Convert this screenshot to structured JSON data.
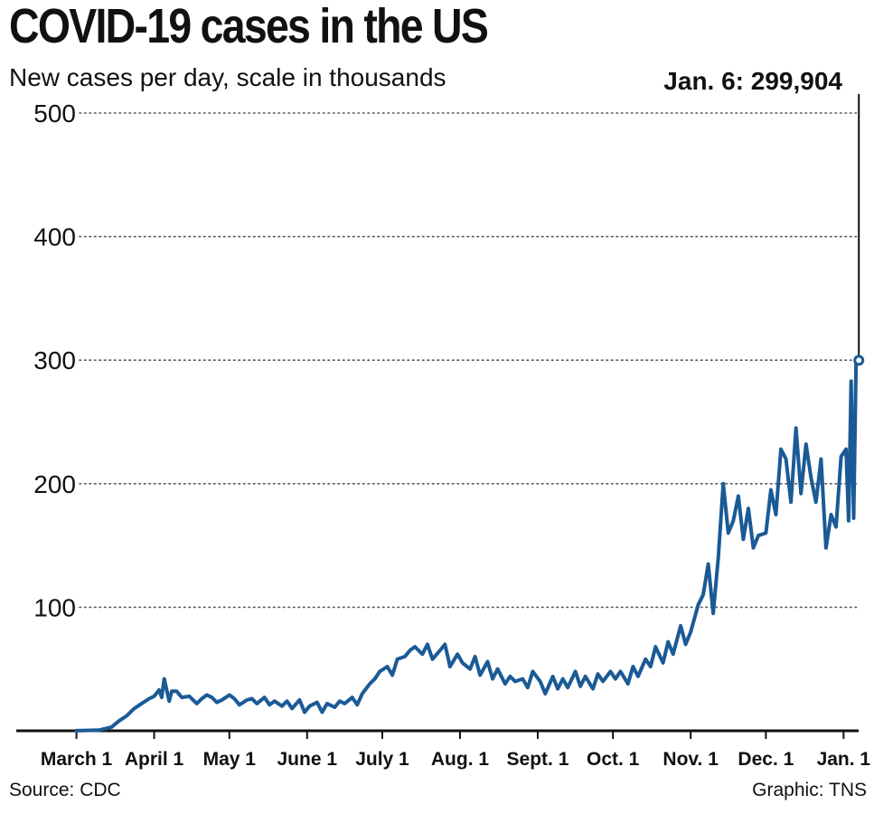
{
  "header": {
    "title": "COVID-19 cases in the US",
    "subtitle": "New cases per day, scale in thousands"
  },
  "footer": {
    "source": "Source: CDC",
    "credit": "Graphic: TNS"
  },
  "chart_data": {
    "type": "line",
    "title": "COVID-19 cases in the US",
    "subtitle": "New cases per day, scale in thousands",
    "ylabel": "",
    "xlabel": "",
    "ylim": [
      0,
      500
    ],
    "yticks": [
      100,
      200,
      300,
      400,
      500
    ],
    "xlim": [
      "2020-02-06",
      "2021-01-07"
    ],
    "xtick_labels": [
      {
        "label": "March 1",
        "date": "2020-03-01"
      },
      {
        "label": "April 1",
        "date": "2020-04-01"
      },
      {
        "label": "May 1",
        "date": "2020-05-01"
      },
      {
        "label": "June 1",
        "date": "2020-06-01"
      },
      {
        "label": "July 1",
        "date": "2020-07-01"
      },
      {
        "label": "Aug. 1",
        "date": "2020-08-01"
      },
      {
        "label": "Sept. 1",
        "date": "2020-09-01"
      },
      {
        "label": "Oct. 1",
        "date": "2020-10-01"
      },
      {
        "label": "Nov. 1",
        "date": "2020-11-01"
      },
      {
        "label": "Dec. 1",
        "date": "2020-12-01"
      },
      {
        "label": "Jan. 1",
        "date": "2021-01-01"
      }
    ],
    "grid": "horizontal dotted",
    "colors": {
      "line": "#1a5a96",
      "axis": "#111111",
      "grid": "#555555"
    },
    "annotation": {
      "text": "Jan. 6: 299,904",
      "date": "2021-01-06",
      "value": 299.904
    },
    "series": [
      {
        "x": [
          "2020-03-01",
          "2020-03-10",
          "2020-03-15",
          "2020-03-18",
          "2020-03-21",
          "2020-03-24",
          "2020-03-27",
          "2020-03-30",
          "2020-04-01",
          "2020-04-03",
          "2020-04-04",
          "2020-04-05",
          "2020-04-07",
          "2020-04-08",
          "2020-04-10",
          "2020-04-12",
          "2020-04-15",
          "2020-04-18",
          "2020-04-20",
          "2020-04-22",
          "2020-04-24",
          "2020-04-26",
          "2020-04-28",
          "2020-05-01",
          "2020-05-03",
          "2020-05-05",
          "2020-05-08",
          "2020-05-10",
          "2020-05-12",
          "2020-05-15",
          "2020-05-17",
          "2020-05-19",
          "2020-05-22",
          "2020-05-24",
          "2020-05-26",
          "2020-05-29",
          "2020-05-31",
          "2020-06-02",
          "2020-06-05",
          "2020-06-07",
          "2020-06-09",
          "2020-06-12",
          "2020-06-14",
          "2020-06-16",
          "2020-06-19",
          "2020-06-21",
          "2020-06-23",
          "2020-06-26",
          "2020-06-28",
          "2020-06-30",
          "2020-07-03",
          "2020-07-05",
          "2020-07-07",
          "2020-07-10",
          "2020-07-12",
          "2020-07-14",
          "2020-07-17",
          "2020-07-19",
          "2020-07-21",
          "2020-07-24",
          "2020-07-26",
          "2020-07-28",
          "2020-07-31",
          "2020-08-02",
          "2020-08-05",
          "2020-08-07",
          "2020-08-09",
          "2020-08-12",
          "2020-08-14",
          "2020-08-16",
          "2020-08-19",
          "2020-08-21",
          "2020-08-23",
          "2020-08-26",
          "2020-08-28",
          "2020-08-30",
          "2020-09-02",
          "2020-09-04",
          "2020-09-07",
          "2020-09-09",
          "2020-09-11",
          "2020-09-13",
          "2020-09-16",
          "2020-09-18",
          "2020-09-20",
          "2020-09-23",
          "2020-09-25",
          "2020-09-27",
          "2020-09-30",
          "2020-10-02",
          "2020-10-04",
          "2020-10-07",
          "2020-10-09",
          "2020-10-11",
          "2020-10-14",
          "2020-10-16",
          "2020-10-18",
          "2020-10-21",
          "2020-10-23",
          "2020-10-25",
          "2020-10-28",
          "2020-10-30",
          "2020-11-01",
          "2020-11-04",
          "2020-11-06",
          "2020-11-08",
          "2020-11-10",
          "2020-11-12",
          "2020-11-14",
          "2020-11-16",
          "2020-11-18",
          "2020-11-20",
          "2020-11-22",
          "2020-11-24",
          "2020-11-26",
          "2020-11-28",
          "2020-12-01",
          "2020-12-03",
          "2020-12-05",
          "2020-12-07",
          "2020-12-09",
          "2020-12-11",
          "2020-12-13",
          "2020-12-15",
          "2020-12-17",
          "2020-12-19",
          "2020-12-21",
          "2020-12-23",
          "2020-12-25",
          "2020-12-27",
          "2020-12-29",
          "2020-12-31",
          "2021-01-02",
          "2021-01-03",
          "2021-01-04",
          "2021-01-05",
          "2021-01-06"
        ],
        "values": [
          0.1,
          0.5,
          3,
          8,
          12,
          18,
          22,
          26,
          28,
          33,
          27,
          42,
          24,
          32,
          32,
          27,
          28,
          22,
          26,
          29,
          27,
          23,
          25,
          29,
          26,
          21,
          25,
          26,
          22,
          27,
          21,
          24,
          20,
          24,
          18,
          25,
          15,
          20,
          23,
          15,
          22,
          19,
          24,
          22,
          27,
          21,
          30,
          38,
          42,
          48,
          52,
          45,
          58,
          60,
          65,
          68,
          62,
          70,
          58,
          65,
          70,
          52,
          62,
          55,
          50,
          60,
          45,
          56,
          42,
          50,
          38,
          44,
          40,
          42,
          35,
          48,
          40,
          30,
          44,
          34,
          42,
          35,
          48,
          36,
          44,
          34,
          46,
          40,
          48,
          42,
          48,
          38,
          52,
          44,
          58,
          52,
          68,
          55,
          72,
          62,
          85,
          70,
          80,
          102,
          110,
          135,
          95,
          140,
          200,
          160,
          170,
          190,
          155,
          180,
          148,
          158,
          160,
          195,
          175,
          228,
          220,
          185,
          245,
          192,
          232,
          205,
          185,
          220,
          148,
          175,
          165,
          222,
          228,
          170,
          283,
          172,
          299.904
        ]
      }
    ]
  }
}
